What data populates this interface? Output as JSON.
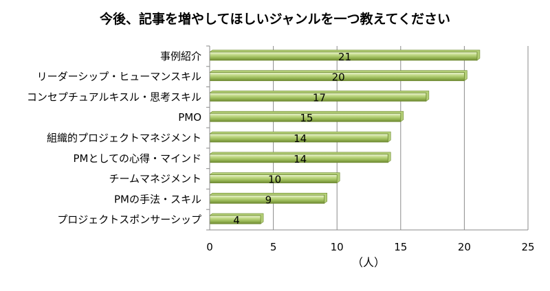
{
  "chart_data": {
    "type": "bar",
    "orientation": "horizontal",
    "title": "今後、記事を増やしてほしいジャンルを一つ教えてください",
    "xlabel": "（人）",
    "ylabel": "",
    "xlim": [
      0,
      25
    ],
    "xticks": [
      "0",
      "5",
      "10",
      "15",
      "20",
      "25"
    ],
    "grid": true,
    "legend": "none",
    "categories": [
      "事例紹介",
      "リーダーシップ・ヒューマンスキル",
      "コンセプチュアルキスル・思考スキル",
      "PMO",
      "組織的プロジェクトマネジメント",
      "PMとしての心得・マインド",
      "チームマネジメント",
      "PMの手法・スキル",
      "プロジェクトスポンサーシップ"
    ],
    "values": [
      21,
      20,
      17,
      15,
      14,
      14,
      10,
      9,
      4
    ],
    "data_labels": [
      "21",
      "20",
      "17",
      "15",
      "14",
      "14",
      "10",
      "9",
      "4"
    ],
    "bar_color": "#9bbb59"
  }
}
